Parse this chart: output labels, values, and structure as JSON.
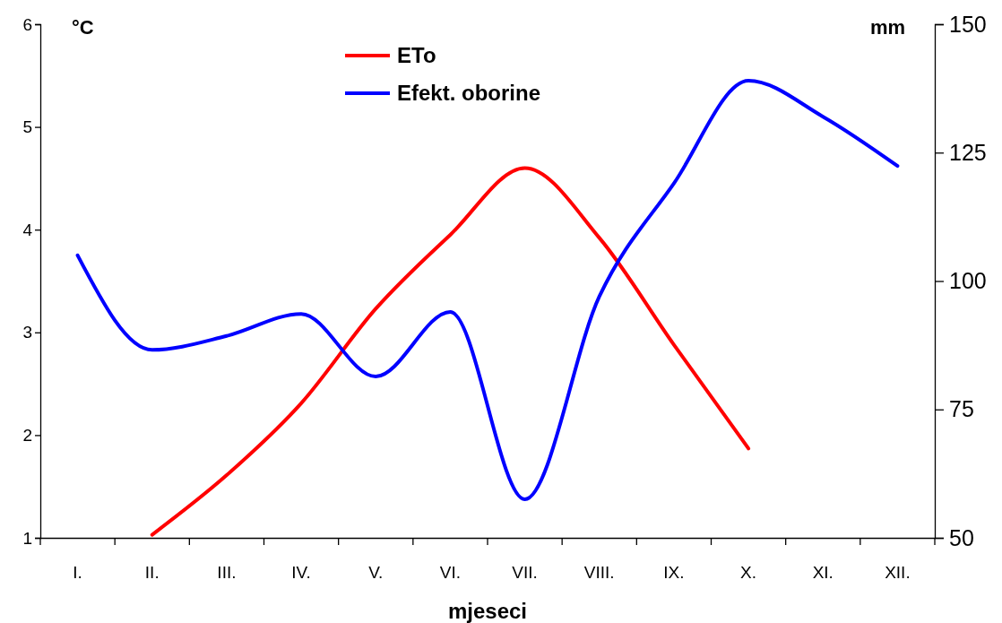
{
  "chart_data": {
    "type": "line",
    "xlabel": "mjeseci",
    "ylabel": "°C",
    "y2label": "mm",
    "categories": [
      "I.",
      "II.",
      "III.",
      "IV.",
      "V.",
      "VI.",
      "VII.",
      "VIII.",
      "IX.",
      "X.",
      "XI.",
      "XII."
    ],
    "series": [
      {
        "name": "ETo",
        "color": "#ff0000",
        "values": [
          null,
          1.03,
          1.61,
          2.31,
          3.23,
          3.95,
          4.6,
          3.92,
          2.88,
          1.87,
          null,
          null
        ]
      },
      {
        "name": "Efekt. oborine",
        "color": "#0000ff",
        "axis": "y2",
        "values": [
          105,
          86.6,
          89.3,
          93.6,
          81.4,
          94,
          57.5,
          97,
          119,
          139,
          132,
          122.4
        ]
      }
    ],
    "ylim": [
      1,
      6
    ],
    "yticks": [
      1,
      2,
      3,
      4,
      5,
      6
    ],
    "y2lim": [
      50,
      150
    ],
    "y2ticks": [
      50,
      75,
      100,
      125,
      150
    ],
    "grid": false,
    "legend": "top",
    "marker": "none",
    "line_style": "solid"
  }
}
